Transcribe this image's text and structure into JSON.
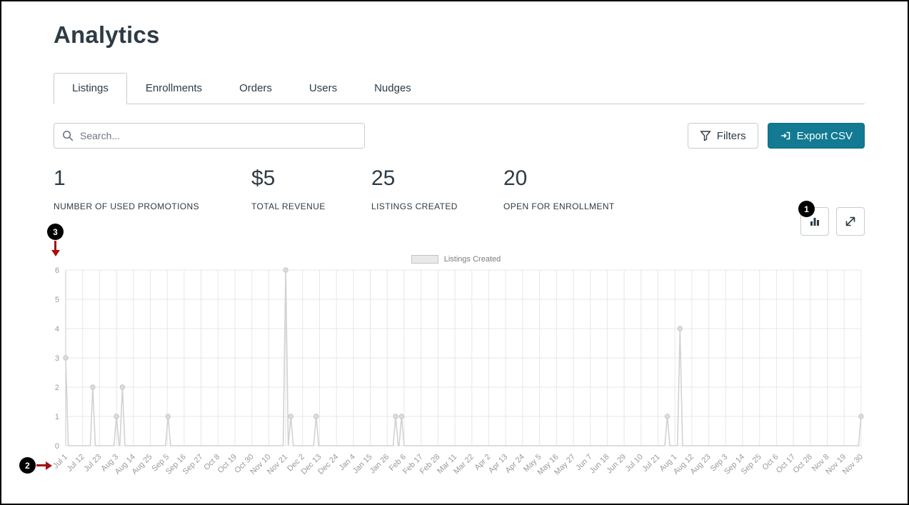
{
  "page": {
    "title": "Analytics"
  },
  "tabs": [
    {
      "label": "Listings",
      "active": true
    },
    {
      "label": "Enrollments",
      "active": false
    },
    {
      "label": "Orders",
      "active": false
    },
    {
      "label": "Users",
      "active": false
    },
    {
      "label": "Nudges",
      "active": false
    }
  ],
  "toolbar": {
    "search_placeholder": "Search...",
    "filters_label": "Filters",
    "export_label": "Export CSV"
  },
  "stats": [
    {
      "value": "1",
      "label": "NUMBER OF USED PROMOTIONS"
    },
    {
      "value": "$5",
      "label": "TOTAL REVENUE"
    },
    {
      "value": "25",
      "label": "LISTINGS CREATED"
    },
    {
      "value": "20",
      "label": "OPEN FOR ENROLLMENT"
    }
  ],
  "annotations": {
    "badge1": "1",
    "badge2": "2",
    "badge3": "3"
  },
  "icons": {
    "search": "search-icon",
    "filters": "funnel-icon",
    "export": "export-icon",
    "chart_toggle": "bar-chart-icon",
    "expand": "expand-icon"
  },
  "colors": {
    "primary_button": "#127a93",
    "annotation_red": "#a50f0f",
    "badge_black": "#000000",
    "border_gray": "#c7cdd1",
    "chart_line": "#d2d2d2"
  },
  "chart_data": {
    "type": "line",
    "legend": "Listings Created",
    "ylim": [
      0,
      6
    ],
    "yticks": [
      0,
      1,
      2,
      3,
      4,
      5,
      6
    ],
    "grid": true,
    "line_color": "#d2d2d2",
    "categories": [
      "Jul 1",
      "Jul 12",
      "Jul 23",
      "Aug 3",
      "Aug 14",
      "Aug 25",
      "Sep 5",
      "Sep 16",
      "Sep 27",
      "Oct 8",
      "Oct 19",
      "Oct 30",
      "Nov 10",
      "Nov 21",
      "Dec 2",
      "Dec 13",
      "Dec 24",
      "Jan 4",
      "Jan 15",
      "Jan 26",
      "Feb 6",
      "Feb 17",
      "Feb 28",
      "Mar 11",
      "Mar 22",
      "Apr 2",
      "Apr 13",
      "Apr 24",
      "May 5",
      "May 16",
      "May 27",
      "Jun 7",
      "Jun 18",
      "Jun 29",
      "Jul 10",
      "Jul 21",
      "Aug 1",
      "Aug 12",
      "Aug 23",
      "Sep 3",
      "Sep 14",
      "Sep 25",
      "Oct 6",
      "Oct 17",
      "Oct 28",
      "Nov 8",
      "Nov 19",
      "Nov 30"
    ],
    "spikes": [
      {
        "i": 0,
        "v": 3
      },
      {
        "i": 1.6,
        "v": 2
      },
      {
        "i": 3.0,
        "v": 1
      },
      {
        "i": 3.35,
        "v": 2
      },
      {
        "i": 6.05,
        "v": 1
      },
      {
        "i": 13,
        "v": 6
      },
      {
        "i": 13.3,
        "v": 1
      },
      {
        "i": 14.8,
        "v": 1
      },
      {
        "i": 19.5,
        "v": 1
      },
      {
        "i": 19.85,
        "v": 1
      },
      {
        "i": 35.55,
        "v": 1
      },
      {
        "i": 36.3,
        "v": 4
      },
      {
        "i": 47,
        "v": 1
      }
    ]
  }
}
